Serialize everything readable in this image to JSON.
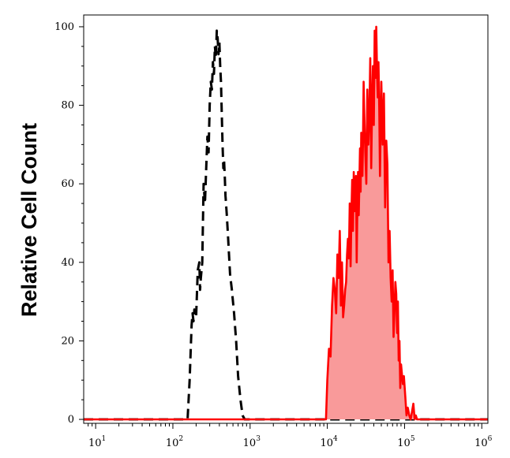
{
  "chart_data": {
    "type": "area",
    "title": "",
    "xlabel": "",
    "ylabel": "Relative Cell Count",
    "xscale": "log",
    "xlim": [
      7,
      1200000
    ],
    "ylim": [
      -1,
      103
    ],
    "x_ticks": [
      {
        "base": "10",
        "exp": "1",
        "value": 10
      },
      {
        "base": "10",
        "exp": "2",
        "value": 100
      },
      {
        "base": "10",
        "exp": "3",
        "value": 1000
      },
      {
        "base": "10",
        "exp": "4",
        "value": 10000
      },
      {
        "base": "10",
        "exp": "5",
        "value": 100000
      },
      {
        "base": "10",
        "exp": "6",
        "value": 1000000
      }
    ],
    "y_ticks": [
      {
        "label": "0",
        "value": 0
      },
      {
        "label": "20",
        "value": 20
      },
      {
        "label": "40",
        "value": 40
      },
      {
        "label": "60",
        "value": 60
      },
      {
        "label": "80",
        "value": 80
      },
      {
        "label": "100",
        "value": 100
      }
    ],
    "grid": false,
    "legend": "none",
    "series": [
      {
        "style": "dashed",
        "color": "#000000",
        "fill": "none",
        "x": [
          7,
          140,
          155,
          165,
          175,
          180,
          185,
          190,
          200,
          210,
          220,
          225,
          230,
          240,
          250,
          260,
          270,
          280,
          290,
          300,
          310,
          320,
          330,
          340,
          350,
          360,
          370,
          380,
          390,
          400,
          410,
          420,
          430,
          440,
          450,
          460,
          470,
          480,
          500,
          520,
          550,
          580,
          620,
          660,
          700,
          750,
          800,
          850,
          1200000
        ],
        "y": [
          0,
          0,
          0,
          10,
          24,
          27,
          25,
          28,
          26,
          38,
          40,
          33,
          36,
          40,
          60,
          55,
          64,
          72,
          68,
          80,
          86,
          84,
          91,
          88,
          95,
          92,
          99,
          97,
          93,
          96,
          90,
          86,
          78,
          70,
          64,
          66,
          62,
          57,
          52,
          46,
          37,
          33,
          27,
          20,
          11,
          5,
          1,
          0,
          0
        ]
      },
      {
        "style": "solid",
        "color": "#ff0000",
        "fill": "#f99a9a",
        "x": [
          7,
          9600,
          10000,
          10500,
          11000,
          11500,
          12000,
          12500,
          13000,
          13500,
          14000,
          14500,
          15000,
          15500,
          16000,
          16500,
          17000,
          17500,
          18000,
          18500,
          19000,
          19500,
          20000,
          20500,
          21000,
          21500,
          22000,
          22500,
          23000,
          23500,
          24000,
          24500,
          25000,
          25500,
          26000,
          26500,
          27000,
          27500,
          28000,
          28500,
          29000,
          29500,
          30000,
          31000,
          32000,
          33000,
          34000,
          35000,
          36000,
          37000,
          38000,
          39000,
          40000,
          41000,
          42000,
          43000,
          44000,
          45000,
          46000,
          47000,
          48000,
          50000,
          52000,
          54000,
          56000,
          58000,
          60000,
          62000,
          64000,
          66000,
          68000,
          70000,
          72000,
          74000,
          76000,
          78000,
          80000,
          82000,
          84000,
          86000,
          88000,
          90000,
          92000,
          95000,
          98000,
          102000,
          106000,
          110000,
          115000,
          120000,
          125000,
          130000,
          135000,
          140000,
          145000,
          150000,
          1200000
        ],
        "y": [
          0,
          0,
          10,
          18,
          16,
          29,
          36,
          33,
          27,
          42,
          36,
          48,
          29,
          40,
          26,
          29,
          33,
          35,
          42,
          46,
          41,
          55,
          39,
          52,
          61,
          48,
          63,
          53,
          58,
          62,
          40,
          55,
          63,
          52,
          60,
          69,
          58,
          73,
          65,
          62,
          71,
          86,
          79,
          68,
          60,
          84,
          70,
          77,
          92,
          64,
          80,
          90,
          75,
          99,
          87,
          100,
          88,
          82,
          91,
          79,
          62,
          86,
          70,
          83,
          54,
          71,
          65,
          40,
          48,
          36,
          30,
          38,
          21,
          27,
          35,
          32,
          22,
          30,
          15,
          20,
          8,
          14,
          12,
          9,
          11,
          6,
          1,
          3,
          1,
          0,
          2,
          4,
          0,
          1,
          0,
          0,
          0
        ]
      }
    ]
  }
}
